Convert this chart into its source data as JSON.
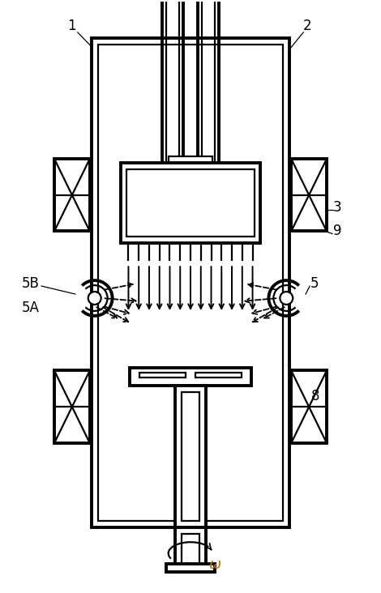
{
  "bg_color": "#ffffff",
  "line_color": "#000000",
  "omega_color": "#c87000"
}
